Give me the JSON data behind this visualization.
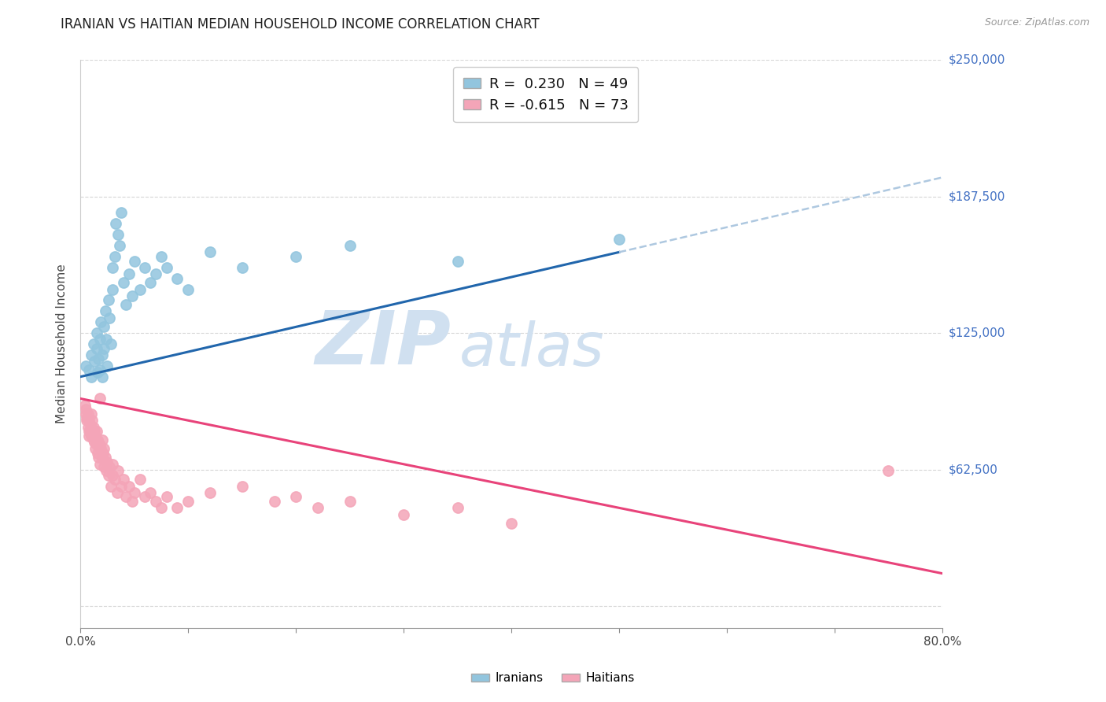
{
  "title": "IRANIAN VS HAITIAN MEDIAN HOUSEHOLD INCOME CORRELATION CHART",
  "source_text": "Source: ZipAtlas.com",
  "ylabel": "Median Household Income",
  "x_min": 0.0,
  "x_max": 0.8,
  "y_min": -10000,
  "y_max": 250000,
  "y_ticks": [
    0,
    62500,
    125000,
    187500,
    250000
  ],
  "y_tick_labels": [
    "",
    "$62,500",
    "$125,000",
    "$187,500",
    "$250,000"
  ],
  "x_ticks": [
    0.0,
    0.1,
    0.2,
    0.3,
    0.4,
    0.5,
    0.6,
    0.7,
    0.8
  ],
  "x_tick_labels": [
    "0.0%",
    "",
    "",
    "",
    "",
    "",
    "",
    "",
    "80.0%"
  ],
  "r_iranian": 0.23,
  "n_iranian": 49,
  "r_haitian": -0.615,
  "n_haitian": 73,
  "iranian_color": "#92c5de",
  "haitian_color": "#f4a5b8",
  "trend_iranian_color": "#2166ac",
  "trend_haitian_color": "#e8437a",
  "trend_iranian_dash_color": "#aec8e0",
  "background_color": "#ffffff",
  "grid_color": "#cccccc",
  "axis_label_color": "#4472C4",
  "watermark_color": "#d0e0f0",
  "watermark_text_zip": "ZIP",
  "watermark_text_atlas": "atlas",
  "iranian_scatter_x": [
    0.005,
    0.008,
    0.01,
    0.01,
    0.012,
    0.013,
    0.015,
    0.015,
    0.016,
    0.017,
    0.018,
    0.018,
    0.019,
    0.02,
    0.02,
    0.022,
    0.022,
    0.023,
    0.024,
    0.025,
    0.026,
    0.027,
    0.028,
    0.03,
    0.03,
    0.032,
    0.033,
    0.035,
    0.036,
    0.038,
    0.04,
    0.042,
    0.045,
    0.048,
    0.05,
    0.055,
    0.06,
    0.065,
    0.07,
    0.075,
    0.08,
    0.09,
    0.1,
    0.12,
    0.15,
    0.2,
    0.25,
    0.35,
    0.5
  ],
  "iranian_scatter_y": [
    110000,
    108000,
    115000,
    105000,
    120000,
    112000,
    125000,
    118000,
    107000,
    113000,
    122000,
    108000,
    130000,
    115000,
    105000,
    128000,
    118000,
    135000,
    122000,
    110000,
    140000,
    132000,
    120000,
    145000,
    155000,
    160000,
    175000,
    170000,
    165000,
    180000,
    148000,
    138000,
    152000,
    142000,
    158000,
    145000,
    155000,
    148000,
    152000,
    160000,
    155000,
    150000,
    145000,
    162000,
    155000,
    160000,
    165000,
    158000,
    168000
  ],
  "haitian_scatter_x": [
    0.004,
    0.005,
    0.005,
    0.006,
    0.006,
    0.007,
    0.007,
    0.008,
    0.008,
    0.008,
    0.009,
    0.009,
    0.01,
    0.01,
    0.01,
    0.011,
    0.011,
    0.012,
    0.012,
    0.013,
    0.013,
    0.014,
    0.014,
    0.015,
    0.015,
    0.016,
    0.016,
    0.017,
    0.017,
    0.018,
    0.018,
    0.019,
    0.02,
    0.02,
    0.021,
    0.022,
    0.022,
    0.023,
    0.024,
    0.025,
    0.026,
    0.027,
    0.028,
    0.03,
    0.03,
    0.032,
    0.034,
    0.035,
    0.038,
    0.04,
    0.042,
    0.045,
    0.048,
    0.05,
    0.055,
    0.06,
    0.065,
    0.07,
    0.075,
    0.08,
    0.09,
    0.1,
    0.12,
    0.15,
    0.18,
    0.2,
    0.22,
    0.25,
    0.3,
    0.35,
    0.4,
    0.75,
    0.018
  ],
  "haitian_scatter_y": [
    92000,
    88000,
    90000,
    86000,
    85000,
    88000,
    82000,
    85000,
    80000,
    78000,
    83000,
    79000,
    88000,
    82000,
    78000,
    85000,
    80000,
    82000,
    76000,
    80000,
    75000,
    78000,
    72000,
    80000,
    74000,
    76000,
    70000,
    75000,
    68000,
    74000,
    65000,
    72000,
    76000,
    68000,
    70000,
    72000,
    64000,
    68000,
    62000,
    66000,
    60000,
    64000,
    55000,
    65000,
    60000,
    58000,
    52000,
    62000,
    55000,
    58000,
    50000,
    55000,
    48000,
    52000,
    58000,
    50000,
    52000,
    48000,
    45000,
    50000,
    45000,
    48000,
    52000,
    55000,
    48000,
    50000,
    45000,
    48000,
    42000,
    45000,
    38000,
    62000,
    95000
  ]
}
